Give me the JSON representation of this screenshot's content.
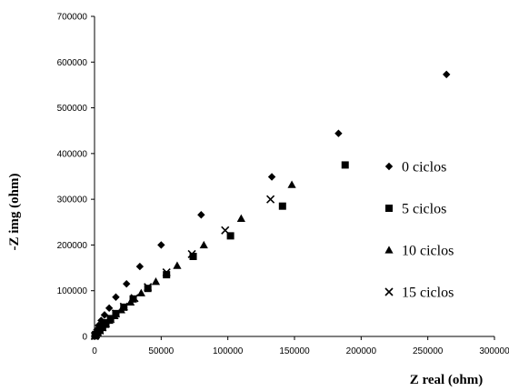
{
  "chart_data": {
    "type": "scatter",
    "xlabel": "Z real (ohm)",
    "ylabel": "-Z img (ohm)",
    "xlim": [
      0,
      300000
    ],
    "ylim": [
      0,
      700000
    ],
    "x_ticks": [
      "0",
      "50000",
      "100000",
      "150000",
      "200000",
      "250000",
      "300000"
    ],
    "y_ticks": [
      "0",
      "100000",
      "200000",
      "300000",
      "400000",
      "500000",
      "600000",
      "700000"
    ],
    "grid": false,
    "legend_position": "right",
    "series": [
      {
        "name": "0 ciclos",
        "marker": "diamond",
        "color": "#000000",
        "points": [
          [
            264000,
            573000
          ],
          [
            183000,
            444000
          ],
          [
            133000,
            349000
          ],
          [
            80000,
            266000
          ],
          [
            50000,
            200000
          ],
          [
            34000,
            153000
          ],
          [
            24000,
            115000
          ],
          [
            16000,
            86000
          ],
          [
            11000,
            62000
          ],
          [
            7500,
            47000
          ],
          [
            5000,
            35000
          ],
          [
            3000,
            24000
          ],
          [
            1800,
            15000
          ],
          [
            1000,
            8000
          ],
          [
            400,
            3000
          ]
        ]
      },
      {
        "name": "5 ciclos",
        "marker": "square",
        "color": "#000000",
        "points": [
          [
            188000,
            375000
          ],
          [
            141000,
            285000
          ],
          [
            102000,
            220000
          ],
          [
            74000,
            175000
          ],
          [
            54000,
            135000
          ],
          [
            40000,
            105000
          ],
          [
            29000,
            82000
          ],
          [
            22000,
            64000
          ],
          [
            16000,
            50000
          ],
          [
            12000,
            39000
          ],
          [
            8500,
            30000
          ],
          [
            6000,
            22000
          ],
          [
            4000,
            15000
          ],
          [
            2500,
            9000
          ],
          [
            1200,
            4500
          ],
          [
            500,
            1500
          ]
        ]
      },
      {
        "name": "10 ciclos",
        "marker": "triangle",
        "color": "#000000",
        "points": [
          [
            148000,
            332000
          ],
          [
            110000,
            258000
          ],
          [
            82000,
            200000
          ],
          [
            62000,
            155000
          ],
          [
            46000,
            120000
          ],
          [
            35000,
            95000
          ],
          [
            27000,
            75000
          ],
          [
            20000,
            58000
          ],
          [
            15000,
            45000
          ],
          [
            11000,
            35000
          ],
          [
            8000,
            26000
          ],
          [
            5500,
            19000
          ],
          [
            3500,
            13000
          ],
          [
            2000,
            7500
          ],
          [
            900,
            3500
          ],
          [
            300,
            1000
          ]
        ]
      },
      {
        "name": "15 ciclos",
        "marker": "x",
        "color": "#000000",
        "points": [
          [
            132000,
            300000
          ],
          [
            98000,
            232000
          ],
          [
            73000,
            180000
          ],
          [
            54000,
            140000
          ],
          [
            40000,
            108000
          ],
          [
            30000,
            84000
          ],
          [
            22000,
            65000
          ],
          [
            16000,
            50000
          ],
          [
            12000,
            38000
          ],
          [
            8500,
            28000
          ],
          [
            6000,
            20000
          ],
          [
            4000,
            13000
          ],
          [
            2200,
            7500
          ],
          [
            1000,
            3500
          ],
          [
            300,
            1000
          ]
        ]
      }
    ]
  }
}
